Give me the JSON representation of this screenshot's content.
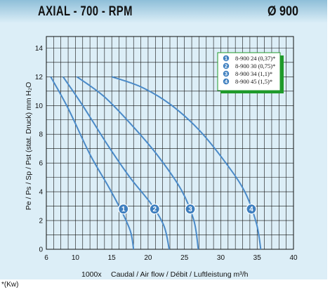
{
  "header": {
    "title": "AXIAL - 700 - RPM",
    "diameter": "Ø 900"
  },
  "footnote": "*(Kw)",
  "colors": {
    "curve": "#4a8ac8",
    "marker": "#3e7fbf",
    "legend_border": "#1e9a2a",
    "grid": "#111111",
    "panel": "#dceef7"
  },
  "chart_data": {
    "type": "line",
    "title": "",
    "xlabel_prefix": "1000x",
    "xlabel": "Caudal / Air flow / Débit / Luftleistung m³/h",
    "ylabel": "Pe / Ps / Sp / Pst (stat. Druck) mm H₂O",
    "xlim": [
      6,
      40
    ],
    "ylim": [
      0,
      14.8
    ],
    "x_ticks": [
      6,
      10,
      15,
      20,
      25,
      30,
      35,
      40
    ],
    "y_ticks": [
      0,
      2,
      4,
      6,
      8,
      10,
      12,
      14
    ],
    "grid": true,
    "legend_position": "top-right",
    "series": [
      {
        "name": "8-900 24 (0,37)*",
        "marker": "1",
        "marker_at": [
          16.6,
          2.8
        ],
        "points": [
          [
            6.6,
            12.0
          ],
          [
            9,
            9.8
          ],
          [
            12,
            6.6
          ],
          [
            14.5,
            4.4
          ],
          [
            16.5,
            2.5
          ],
          [
            17.6,
            1.2
          ],
          [
            18.0,
            0
          ]
        ]
      },
      {
        "name": "8-900 30 (0,75)*",
        "marker": "2",
        "marker_at": [
          20.9,
          2.8
        ],
        "points": [
          [
            8.3,
            12.0
          ],
          [
            11,
            10.0
          ],
          [
            14.5,
            7.2
          ],
          [
            17.5,
            5.0
          ],
          [
            20.5,
            3.1
          ],
          [
            22.2,
            1.6
          ],
          [
            22.9,
            0
          ]
        ]
      },
      {
        "name": "8-900 34 (1,1)*",
        "marker": "3",
        "marker_at": [
          25.8,
          2.8
        ],
        "points": [
          [
            10.2,
            12.0
          ],
          [
            14,
            10.6
          ],
          [
            18,
            8.5
          ],
          [
            21.5,
            6.4
          ],
          [
            24.6,
            4.1
          ],
          [
            26.3,
            2.0
          ],
          [
            26.9,
            0
          ]
        ]
      },
      {
        "name": "8-900 45 (1,5)*",
        "marker": "4",
        "marker_at": [
          34.2,
          2.8
        ],
        "points": [
          [
            15.0,
            12.0
          ],
          [
            19,
            11.3
          ],
          [
            23,
            10.1
          ],
          [
            27,
            8.3
          ],
          [
            30.7,
            6.0
          ],
          [
            33.3,
            4.0
          ],
          [
            34.9,
            1.8
          ],
          [
            35.5,
            0
          ]
        ]
      }
    ]
  }
}
